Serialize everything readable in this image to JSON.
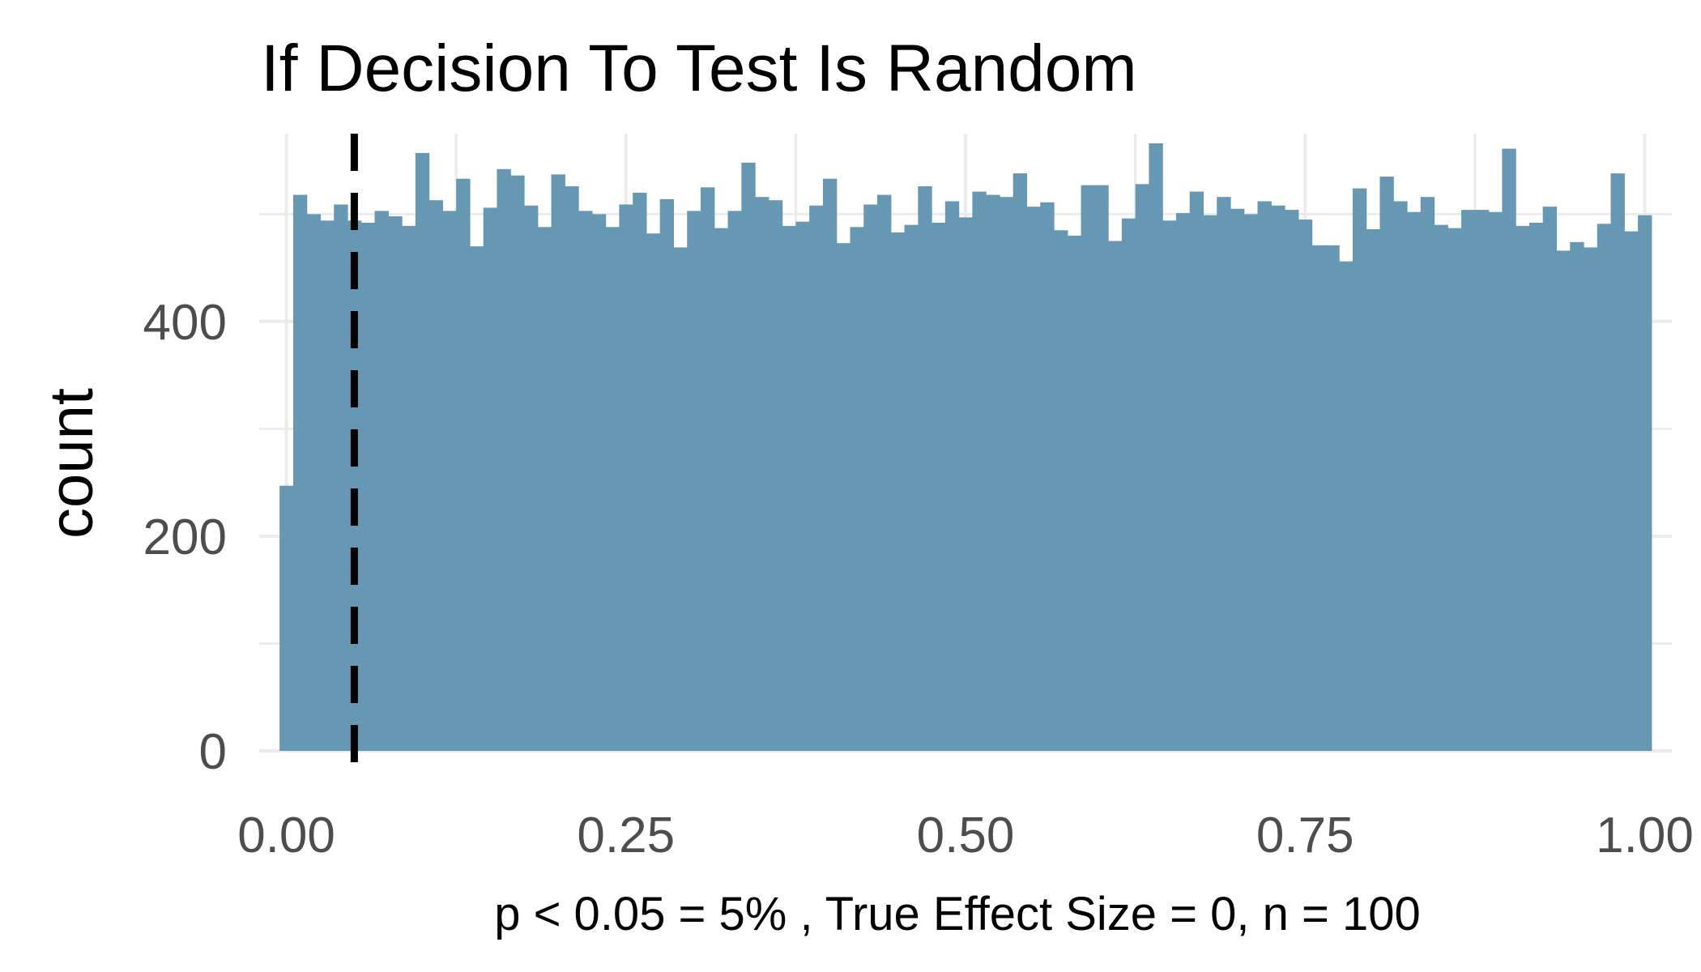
{
  "chart_data": {
    "type": "bar",
    "title": "If Decision To Test Is Random",
    "xlabel": "p < 0.05 = 5% , True Effect Size = 0, n = 100",
    "ylabel": "count",
    "xlim": [
      -0.02,
      1.02
    ],
    "ylim": [
      0,
      575
    ],
    "x_ticks": [
      0.0,
      0.25,
      0.5,
      0.75,
      1.0
    ],
    "x_tick_labels": [
      "0.00",
      "0.25",
      "0.50",
      "0.75",
      "1.00"
    ],
    "y_ticks": [
      0,
      200,
      400
    ],
    "y_tick_labels": [
      "0",
      "200",
      "400"
    ],
    "grid": true,
    "bar_color": "#6798b3",
    "bin_width": 0.01,
    "bin_centers": [
      0.0,
      0.01,
      0.02,
      0.03,
      0.04,
      0.05,
      0.06,
      0.07,
      0.08,
      0.09,
      0.1,
      0.11,
      0.12,
      0.13,
      0.14,
      0.15,
      0.16,
      0.17,
      0.18,
      0.19,
      0.2,
      0.21,
      0.22,
      0.23,
      0.24,
      0.25,
      0.26,
      0.27,
      0.28,
      0.29,
      0.3,
      0.31,
      0.32,
      0.33,
      0.34,
      0.35,
      0.36,
      0.37,
      0.38,
      0.39,
      0.4,
      0.41,
      0.42,
      0.43,
      0.44,
      0.45,
      0.46,
      0.47,
      0.48,
      0.49,
      0.5,
      0.51,
      0.52,
      0.53,
      0.54,
      0.55,
      0.56,
      0.57,
      0.58,
      0.59,
      0.6,
      0.61,
      0.62,
      0.63,
      0.64,
      0.65,
      0.66,
      0.67,
      0.68,
      0.69,
      0.7,
      0.71,
      0.72,
      0.73,
      0.74,
      0.75,
      0.76,
      0.77,
      0.78,
      0.79,
      0.8,
      0.81,
      0.82,
      0.83,
      0.84,
      0.85,
      0.86,
      0.87,
      0.88,
      0.89,
      0.9,
      0.91,
      0.92,
      0.93,
      0.94,
      0.95,
      0.96,
      0.97,
      0.98,
      0.99,
      1.0
    ],
    "counts": [
      247,
      518,
      500,
      494,
      509,
      494,
      492,
      503,
      498,
      489,
      557,
      513,
      503,
      533,
      470,
      506,
      542,
      536,
      508,
      488,
      537,
      526,
      503,
      500,
      488,
      509,
      520,
      482,
      514,
      469,
      503,
      525,
      487,
      503,
      548,
      516,
      513,
      489,
      493,
      508,
      533,
      473,
      488,
      509,
      518,
      483,
      490,
      526,
      492,
      512,
      497,
      521,
      518,
      516,
      538,
      507,
      511,
      485,
      480,
      527,
      527,
      475,
      496,
      528,
      566,
      494,
      501,
      521,
      499,
      516,
      505,
      500,
      512,
      508,
      504,
      495,
      471,
      471,
      456,
      524,
      486,
      535,
      512,
      502,
      516,
      490,
      487,
      504,
      504,
      502,
      561,
      489,
      492,
      507,
      466,
      474,
      469,
      491,
      538,
      484,
      499
    ],
    "reference_line": {
      "x": 0.05,
      "style": "dashed",
      "color": "#000000"
    }
  }
}
